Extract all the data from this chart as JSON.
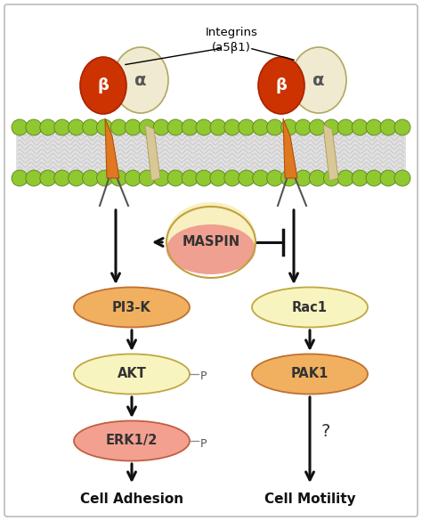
{
  "fig_width": 4.74,
  "fig_height": 5.85,
  "dpi": 100,
  "bg_color": "#ffffff",
  "border_color": "#bbbbbb",
  "membrane_bg": "#e0e0e0",
  "membrane_green": "#90c830",
  "membrane_green_ec": "#608020",
  "integrin_beta_color": "#cc3300",
  "integrin_beta_ec": "#aa2200",
  "integrin_alpha_color": "#f0ead0",
  "integrin_alpha_ec": "#b0a860",
  "integrin_stem_color": "#e07820",
  "integrin_stem_ec": "#b05010",
  "maspin_color_top": "#f8f0c0",
  "maspin_color_bot": "#f0a090",
  "maspin_ec": "#c0a040",
  "pi3k_color": "#f0b060",
  "pi3k_ec": "#c07030",
  "akt_color": "#f8f4c0",
  "akt_ec": "#c0a840",
  "erk_color": "#f4a090",
  "erk_ec": "#c06040",
  "rac1_color": "#f8f4c0",
  "rac1_ec": "#c0a840",
  "pak1_color": "#f0b060",
  "pak1_ec": "#c07030",
  "arrow_color": "#111111",
  "text_color": "#222222",
  "label_beta": "β",
  "label_alpha": "α",
  "label_maspin": "MASPIN",
  "label_pi3k": "PI3-K",
  "label_akt": "AKT",
  "label_erk": "ERK1/2",
  "label_rac1": "Rac1",
  "label_pak1": "PAK1",
  "label_p": "P",
  "label_q": "?",
  "label_integrins_line1": "Integrins",
  "label_integrins_line2": "(a5β1)",
  "label_cell_adhesion": "Cell Adhesion",
  "label_cell_motility": "Cell Motility"
}
